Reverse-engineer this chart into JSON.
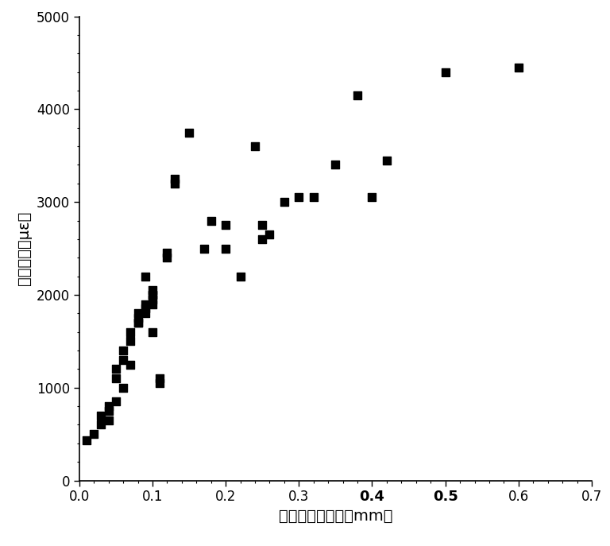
{
  "x": [
    0.01,
    0.02,
    0.03,
    0.03,
    0.04,
    0.04,
    0.04,
    0.05,
    0.05,
    0.05,
    0.06,
    0.06,
    0.06,
    0.07,
    0.07,
    0.07,
    0.08,
    0.08,
    0.08,
    0.08,
    0.09,
    0.09,
    0.09,
    0.09,
    0.1,
    0.1,
    0.1,
    0.1,
    0.1,
    0.1,
    0.11,
    0.11,
    0.12,
    0.12,
    0.13,
    0.13,
    0.15,
    0.17,
    0.18,
    0.2,
    0.2,
    0.22,
    0.24,
    0.25,
    0.25,
    0.26,
    0.28,
    0.3,
    0.32,
    0.35,
    0.38,
    0.4,
    0.42,
    0.5,
    0.6
  ],
  "y": [
    430,
    500,
    600,
    700,
    650,
    750,
    800,
    1100,
    1200,
    850,
    1300,
    1400,
    1000,
    1500,
    1600,
    1250,
    1700,
    1700,
    1750,
    1800,
    1800,
    1850,
    1900,
    2200,
    1600,
    1900,
    1950,
    2000,
    2000,
    2050,
    1050,
    1100,
    2400,
    2450,
    3200,
    3250,
    3750,
    2500,
    2800,
    2500,
    2750,
    2200,
    3600,
    2750,
    2600,
    2650,
    3000,
    3050,
    3050,
    3400,
    4150,
    3050,
    3450,
    4400,
    4450
  ],
  "xlabel": "裂缝宽度实测値（mm）",
  "ylabel": "光纤应变（με）",
  "xlim": [
    0,
    0.7
  ],
  "ylim": [
    0,
    5000
  ],
  "xticks": [
    0.0,
    0.1,
    0.2,
    0.3,
    0.4,
    0.5,
    0.6,
    0.7
  ],
  "yticks": [
    0,
    1000,
    2000,
    3000,
    4000,
    5000
  ],
  "bold_xticks": [
    0.4,
    0.5
  ],
  "marker_color": "#000000",
  "marker_size": 55,
  "background_color": "#ffffff",
  "label_fontsize": 14,
  "tick_fontsize": 12
}
